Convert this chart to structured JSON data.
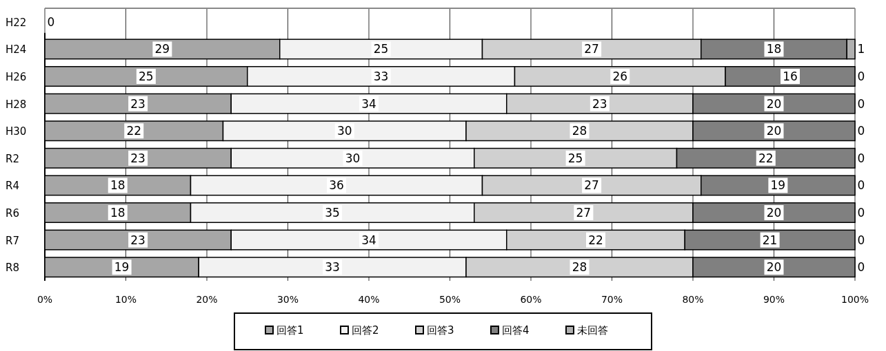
{
  "chart_data": {
    "type": "bar",
    "orientation": "horizontal",
    "stacked": true,
    "categories": [
      "H22",
      "H24",
      "H26",
      "H28",
      "H30",
      "R2",
      "R4",
      "R6",
      "R7",
      "R8"
    ],
    "series": [
      {
        "name": "回答1",
        "color": "#a6a6a6",
        "values": [
          0,
          29,
          25,
          23,
          22,
          23,
          18,
          18,
          23,
          19
        ],
        "value_labels": [
          "0",
          "29",
          "25",
          "23",
          "22",
          "23",
          "18",
          "18",
          "23",
          "19"
        ]
      },
      {
        "name": "回答2",
        "color": "#f2f2f2",
        "values": [
          null,
          25,
          33,
          34,
          30,
          30,
          36,
          35,
          34,
          33
        ],
        "value_labels": [
          null,
          "25",
          "33",
          "34",
          "30",
          "30",
          "36",
          "35",
          "34",
          "33"
        ]
      },
      {
        "name": "回答3",
        "color": "#d0d0d0",
        "values": [
          null,
          27,
          26,
          23,
          28,
          25,
          27,
          27,
          22,
          28
        ],
        "value_labels": [
          null,
          "27",
          "26",
          "23",
          "28",
          "25",
          "27",
          "27",
          "22",
          "28"
        ]
      },
      {
        "name": "回答4",
        "color": "#808080",
        "values": [
          null,
          18,
          16,
          20,
          20,
          22,
          19,
          20,
          21,
          20
        ],
        "value_labels": [
          null,
          "18",
          "16",
          "20",
          "20",
          "22",
          "19",
          "20",
          "21",
          "20"
        ]
      },
      {
        "name": "未回答",
        "color": "#b0b0b0",
        "values": [
          null,
          1,
          0,
          0,
          0,
          0,
          0,
          0,
          0,
          0
        ],
        "value_labels": [
          null,
          "1",
          "0",
          "0",
          "0",
          "0",
          "0",
          "0",
          "0",
          "0"
        ]
      }
    ],
    "xlim": [
      0,
      100
    ],
    "xticks": [
      {
        "value": 0,
        "label": "0%"
      },
      {
        "value": 10,
        "label": "10%"
      },
      {
        "value": 20,
        "label": "20%"
      },
      {
        "value": 30,
        "label": "30%"
      },
      {
        "value": 40,
        "label": "40%"
      },
      {
        "value": 50,
        "label": "50%"
      },
      {
        "value": 60,
        "label": "60%"
      },
      {
        "value": 70,
        "label": "70%"
      },
      {
        "value": 80,
        "label": "80%"
      },
      {
        "value": 90,
        "label": "90%"
      },
      {
        "value": 100,
        "label": "100%"
      }
    ],
    "grid": "x",
    "legend": "bottom"
  }
}
